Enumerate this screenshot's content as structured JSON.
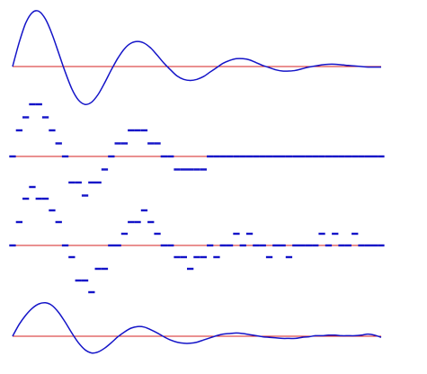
{
  "colors": {
    "series": "#1414c8",
    "baseline": "#d42020"
  },
  "chart_data": [
    {
      "type": "line",
      "panel": "original-signal",
      "x": [
        0,
        0.5,
        1,
        1.5,
        2,
        2.5,
        3,
        3.5,
        4,
        4.5,
        5,
        5.5,
        6,
        6.5,
        7,
        7.5,
        8,
        8.5,
        9,
        9.5,
        10,
        10.5,
        11,
        11.5,
        12,
        12.5,
        13,
        13.5,
        14,
        14.5,
        15,
        15.5,
        16,
        16.5,
        17,
        17.5,
        18,
        18.5,
        19,
        19.5,
        20,
        20.5,
        21,
        21.5,
        22,
        22.5,
        23,
        23.5,
        24,
        24.5,
        25,
        25.5,
        26,
        26.5,
        27,
        27.5,
        28
      ],
      "values": [
        0,
        0.43,
        0.78,
        0.97,
        0.99,
        0.85,
        0.58,
        0.24,
        -0.1,
        -0.4,
        -0.6,
        -0.68,
        -0.64,
        -0.5,
        -0.29,
        -0.06,
        0.15,
        0.32,
        0.42,
        0.45,
        0.42,
        0.33,
        0.2,
        0.06,
        -0.06,
        -0.17,
        -0.23,
        -0.25,
        -0.23,
        -0.18,
        -0.1,
        -0.02,
        0.06,
        0.11,
        0.14,
        0.14,
        0.12,
        0.07,
        0.02,
        -0.02,
        -0.06,
        -0.08,
        -0.08,
        -0.07,
        -0.04,
        -0.01,
        0.01,
        0.03,
        0.04,
        0.04,
        0.03,
        0.02,
        0.01,
        0,
        -0.01,
        -0.01,
        -0.01
      ],
      "ylim": [
        -1.1,
        1.1
      ],
      "grid": false
    },
    {
      "type": "scatter",
      "panel": "coarse-quantized",
      "x": [
        0,
        0.5,
        1,
        1.5,
        2,
        2.5,
        3,
        3.5,
        4,
        4.5,
        5,
        5.5,
        6,
        6.5,
        7,
        7.5,
        8,
        8.5,
        9,
        9.5,
        10,
        10.5,
        11,
        11.5,
        12,
        12.5,
        13,
        13.5,
        14,
        14.5,
        15,
        15.5,
        16,
        16.5,
        17,
        17.5,
        18,
        18.5,
        19,
        19.5,
        20,
        20.5,
        21,
        21.5,
        22,
        22.5,
        23,
        23.5,
        24,
        24.5,
        25,
        25.5,
        26,
        26.5,
        27,
        27.5,
        28
      ],
      "values": [
        0,
        0.5,
        0.75,
        1,
        1,
        0.75,
        0.5,
        0.25,
        0,
        -0.5,
        -0.5,
        -0.75,
        -0.5,
        -0.5,
        -0.25,
        0,
        0.25,
        0.25,
        0.5,
        0.5,
        0.5,
        0.25,
        0.25,
        0,
        0,
        -0.25,
        -0.25,
        -0.25,
        -0.25,
        -0.25,
        0,
        0,
        0,
        0,
        0,
        0,
        0,
        0,
        0,
        0,
        0,
        0,
        0,
        0,
        0,
        0,
        0,
        0,
        0,
        0,
        0,
        0,
        0,
        0,
        0,
        0,
        0
      ],
      "ylim": [
        -1.1,
        1.1
      ],
      "grid": false
    },
    {
      "type": "scatter",
      "panel": "noisy-quantized",
      "x": [
        0,
        0.5,
        1,
        1.5,
        2,
        2.5,
        3,
        3.5,
        4,
        4.5,
        5,
        5.5,
        6,
        6.5,
        7,
        7.5,
        8,
        8.5,
        9,
        9.5,
        10,
        10.5,
        11,
        11.5,
        12,
        12.5,
        13,
        13.5,
        14,
        14.5,
        15,
        15.5,
        16,
        16.5,
        17,
        17.5,
        18,
        18.5,
        19,
        19.5,
        20,
        20.5,
        21,
        21.5,
        22,
        22.5,
        23,
        23.5,
        24,
        24.5,
        25,
        25.5,
        26,
        26.5,
        27,
        27.5,
        28
      ],
      "values": [
        0,
        0.4,
        0.8,
        1,
        0.8,
        0.8,
        0.6,
        0.4,
        0,
        -0.2,
        -0.6,
        -0.6,
        -0.8,
        -0.4,
        -0.4,
        0,
        0,
        0.2,
        0.4,
        0.4,
        0.6,
        0.4,
        0.2,
        0,
        0,
        -0.2,
        -0.2,
        -0.4,
        -0.2,
        -0.2,
        0,
        -0.2,
        0,
        0,
        0.2,
        0,
        0.2,
        0,
        0,
        -0.2,
        0,
        0,
        -0.2,
        0,
        0,
        0,
        0,
        0.2,
        0,
        0.2,
        0,
        0,
        0.2,
        0,
        0,
        0,
        0
      ],
      "ylim": [
        -1.1,
        1.1
      ],
      "grid": false
    },
    {
      "type": "line",
      "panel": "reconstructed-signal",
      "x": [
        0,
        0.5,
        1,
        1.5,
        2,
        2.5,
        3,
        3.5,
        4,
        4.5,
        5,
        5.5,
        6,
        6.5,
        7,
        7.5,
        8,
        8.5,
        9,
        9.5,
        10,
        10.5,
        11,
        11.5,
        12,
        12.5,
        13,
        13.5,
        14,
        14.5,
        15,
        15.5,
        16,
        16.5,
        17,
        17.5,
        18,
        18.5,
        19,
        19.5,
        20,
        20.5,
        21,
        21.5,
        22,
        22.5,
        23,
        23.5,
        24,
        24.5,
        25,
        25.5,
        26,
        26.5,
        27,
        27.5,
        28
      ],
      "values": [
        0,
        0.22,
        0.39,
        0.52,
        0.6,
        0.62,
        0.57,
        0.44,
        0.26,
        0.06,
        -0.12,
        -0.25,
        -0.31,
        -0.29,
        -0.22,
        -0.12,
        -0.01,
        0.08,
        0.15,
        0.18,
        0.17,
        0.12,
        0.06,
        -0.01,
        -0.07,
        -0.11,
        -0.13,
        -0.13,
        -0.11,
        -0.07,
        -0.03,
        0.01,
        0.04,
        0.05,
        0.06,
        0.05,
        0.03,
        0.01,
        -0.01,
        -0.02,
        -0.03,
        -0.04,
        -0.04,
        -0.04,
        -0.02,
        -0.01,
        0.01,
        0.01,
        0.02,
        0.02,
        0.01,
        0.01,
        0.01,
        0.02,
        0.04,
        0.02,
        -0.02
      ],
      "ylim": [
        -1.1,
        1.1
      ],
      "grid": false
    }
  ]
}
